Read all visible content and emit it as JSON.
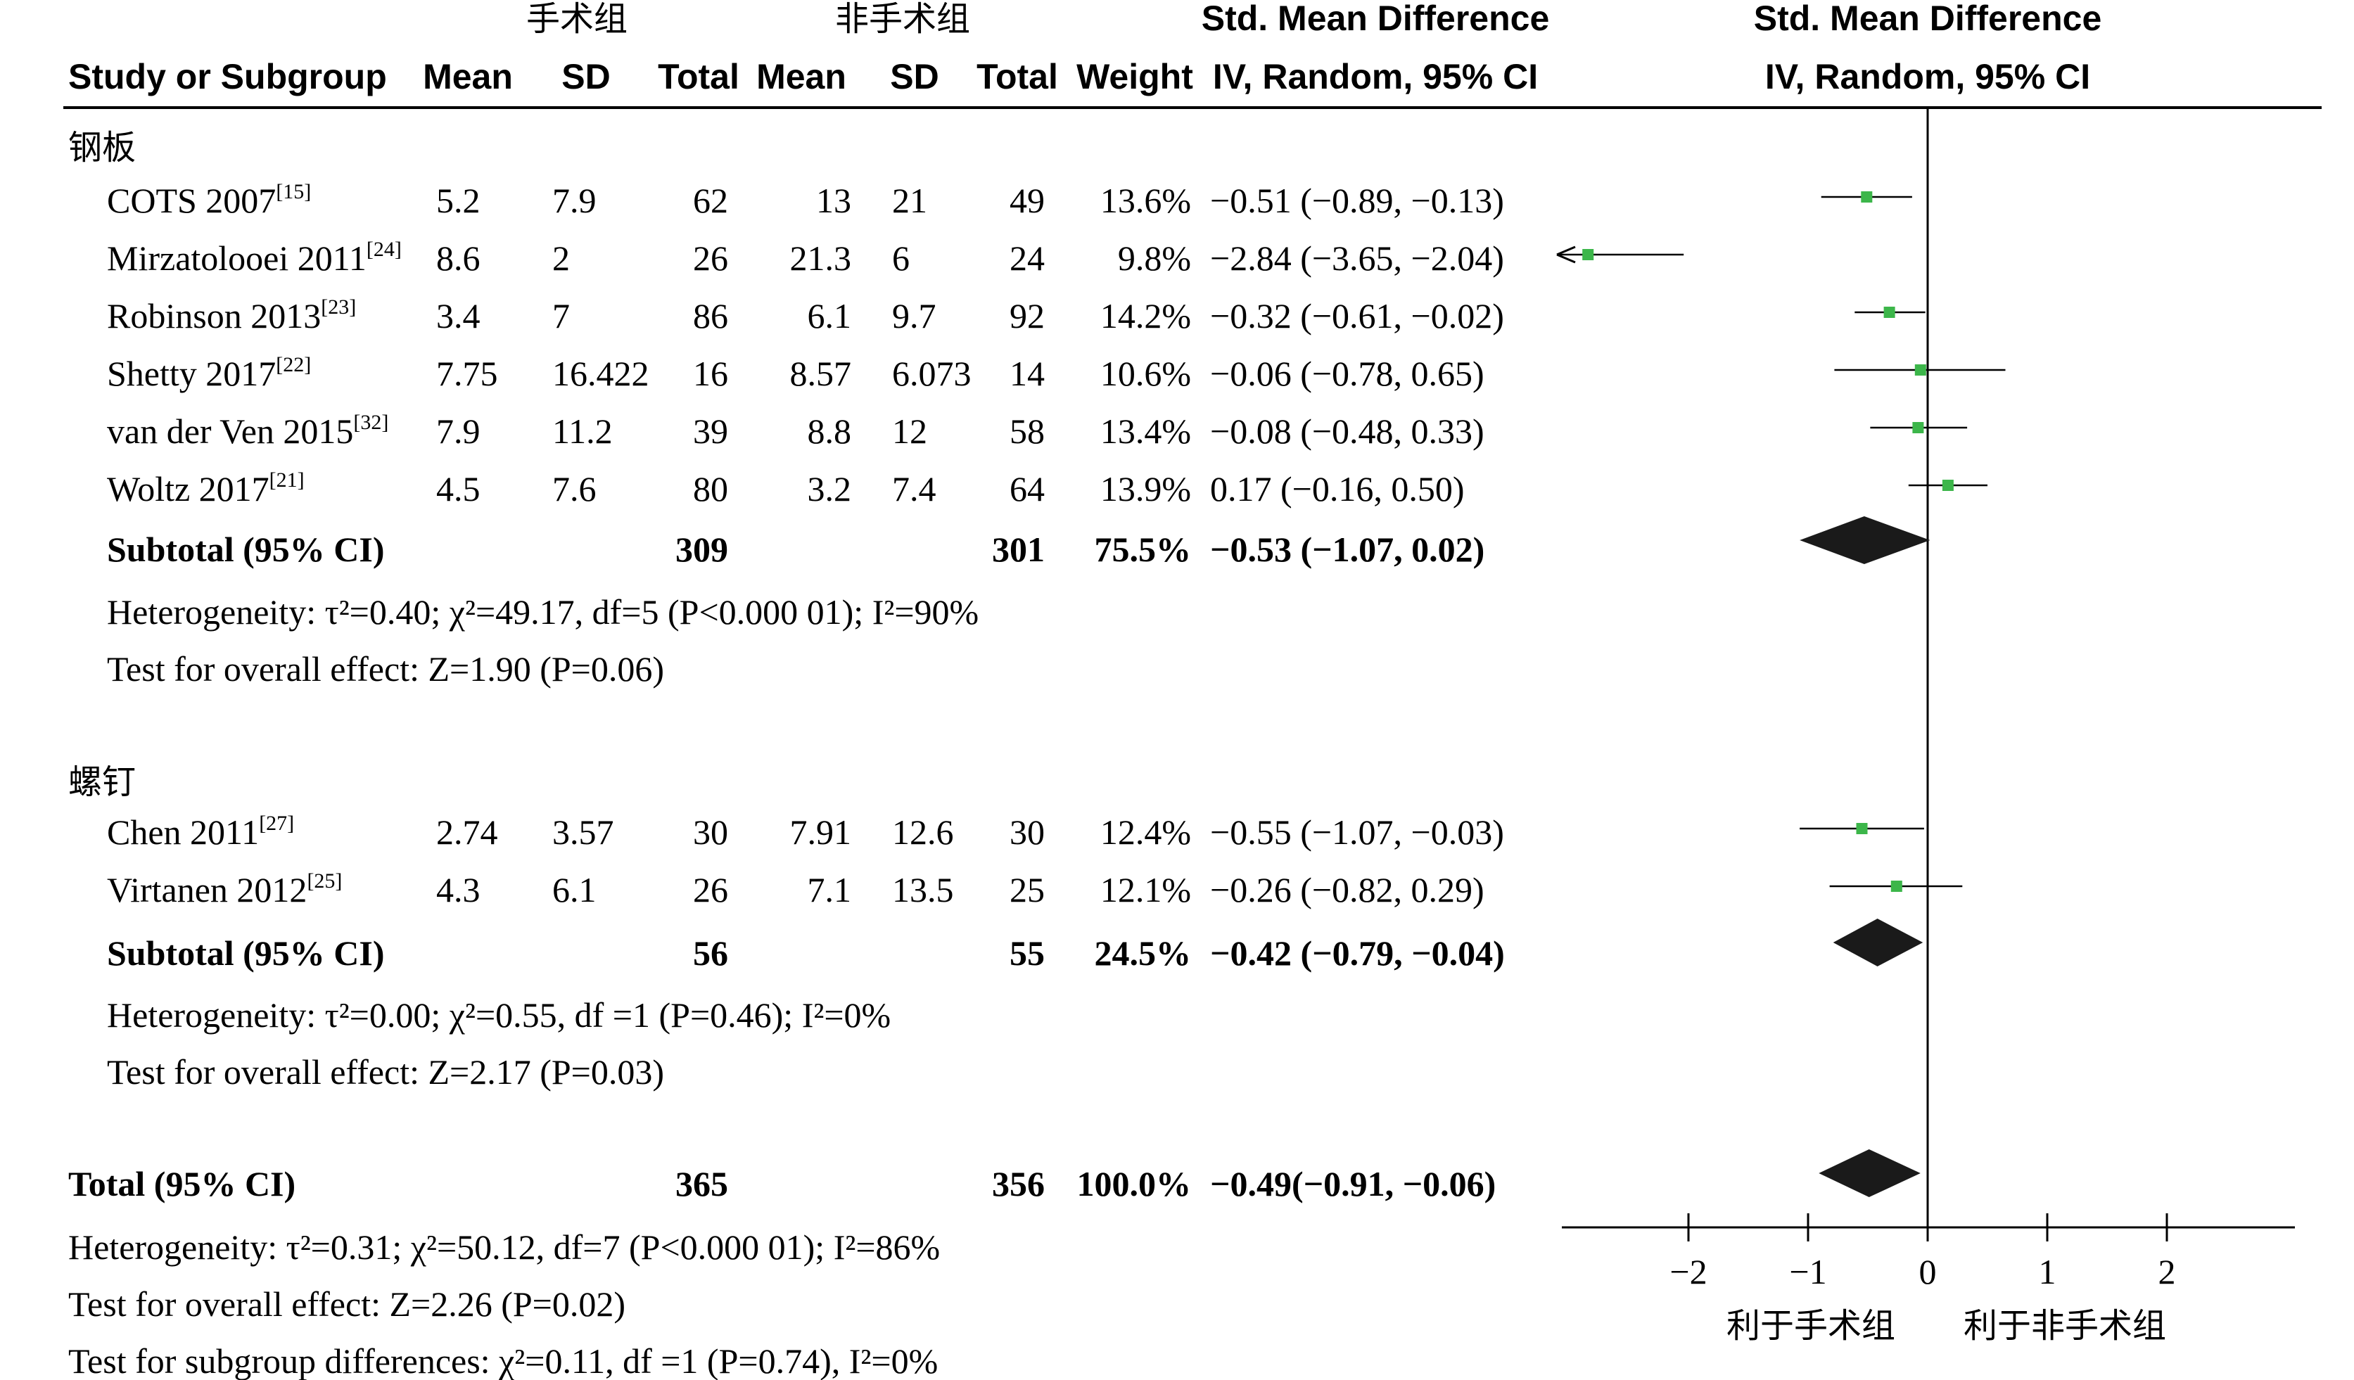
{
  "header": {
    "group1": "手术组",
    "group2": "非手术组",
    "smd_title": "Std. Mean Difference",
    "smd_method": "IV, Random, 95% CI",
    "plot_title": "Std. Mean Difference",
    "plot_method": "IV, Random, 95% CI",
    "columns": [
      "Study or Subgroup",
      "Mean",
      "SD",
      "Total",
      "Mean",
      "SD",
      "Total",
      "Weight"
    ]
  },
  "subgroups": [
    {
      "label": "钢板",
      "studies": [
        {
          "name": "COTS 2007",
          "ref": "[15]",
          "m1": "5.2",
          "sd1": "7.9",
          "n1": "62",
          "m2": "13",
          "sd2": "21",
          "n2": "49",
          "weight": "13.6%",
          "ci_text": "−0.51 (−0.89, −0.13)"
        },
        {
          "name": "Mirzatolooei 2011",
          "ref": "[24]",
          "m1": "8.6",
          "sd1": "2",
          "n1": "26",
          "m2": "21.3",
          "sd2": "6",
          "n2": "24",
          "weight": "9.8%",
          "ci_text": "−2.84 (−3.65, −2.04)"
        },
        {
          "name": "Robinson 2013",
          "ref": "[23]",
          "m1": "3.4",
          "sd1": "7",
          "n1": "86",
          "m2": "6.1",
          "sd2": "9.7",
          "n2": "92",
          "weight": "14.2%",
          "ci_text": "−0.32 (−0.61, −0.02)"
        },
        {
          "name": "Shetty 2017",
          "ref": "[22]",
          "m1": "7.75",
          "sd1": "16.422",
          "n1": "16",
          "m2": "8.57",
          "sd2": "6.073",
          "n2": "14",
          "weight": "10.6%",
          "ci_text": "−0.06 (−0.78, 0.65)"
        },
        {
          "name": "van der Ven 2015",
          "ref": "[32]",
          "m1": "7.9",
          "sd1": "11.2",
          "n1": "39",
          "m2": "8.8",
          "sd2": "12",
          "n2": "58",
          "weight": "13.4%",
          "ci_text": "−0.08 (−0.48, 0.33)"
        },
        {
          "name": "Woltz 2017",
          "ref": "[21]",
          "m1": "4.5",
          "sd1": "7.6",
          "n1": "80",
          "m2": "3.2",
          "sd2": "7.4",
          "n2": "64",
          "weight": "13.9%",
          "ci_text": "0.17 (−0.16, 0.50)"
        }
      ],
      "subtotal": {
        "label": "Subtotal (95% CI)",
        "n1": "309",
        "n2": "301",
        "weight": "75.5%",
        "ci_text": "−0.53 (−1.07, 0.02)"
      },
      "heterogeneity": "Heterogeneity: τ²=0.40; χ²=49.17, df=5 (P<0.000 01); I²=90%",
      "overall": "Test for overall effect: Z=1.90 (P=0.06)"
    },
    {
      "label": "螺钉",
      "studies": [
        {
          "name": "Chen 2011",
          "ref": "[27]",
          "m1": "2.74",
          "sd1": "3.57",
          "n1": "30",
          "m2": "7.91",
          "sd2": "12.6",
          "n2": "30",
          "weight": "12.4%",
          "ci_text": "−0.55 (−1.07, −0.03)"
        },
        {
          "name": "Virtanen 2012",
          "ref": "[25]",
          "m1": "4.3",
          "sd1": "6.1",
          "n1": "26",
          "m2": "7.1",
          "sd2": "13.5",
          "n2": "25",
          "weight": "12.1%",
          "ci_text": "−0.26 (−0.82, 0.29)"
        }
      ],
      "subtotal": {
        "label": "Subtotal (95% CI)",
        "n1": "56",
        "n2": "55",
        "weight": "24.5%",
        "ci_text": "−0.42 (−0.79, −0.04)"
      },
      "heterogeneity": "Heterogeneity: τ²=0.00; χ²=0.55, df =1 (P=0.46); I²=0%",
      "overall": "Test for overall effect: Z=2.17 (P=0.03)"
    }
  ],
  "total": {
    "label": "Total (95% CI)",
    "n1": "365",
    "n2": "356",
    "weight": "100.0%",
    "ci_text": "−0.49(−0.91, −0.06)",
    "heterogeneity": "Heterogeneity: τ²=0.31; χ²=50.12, df=7 (P<0.000 01); I²=86%",
    "overall": "Test for overall effect: Z=2.26 (P=0.02)",
    "subgroup_diff": "Test for subgroup differences: χ²=0.11, df =1 (P=0.74), I²=0%"
  },
  "axis": {
    "ticks": [
      "−2",
      "−1",
      "0",
      "1",
      "2"
    ],
    "left_label": "利于手术组",
    "right_label": "利于非手术组"
  },
  "colors": {
    "marker": "#3cb64a",
    "diamond": "#1a1a1a",
    "line": "#000000"
  },
  "chart_data": {
    "type": "forest",
    "xlim": [
      -3.1,
      3.1
    ],
    "ticks": [
      -2,
      -1,
      0,
      1,
      2
    ],
    "studies": [
      {
        "name": "COTS 2007",
        "est": -0.51,
        "lo": -0.89,
        "hi": -0.13
      },
      {
        "name": "Mirzatolooei 2011",
        "est": -2.84,
        "lo": -3.65,
        "hi": -2.04
      },
      {
        "name": "Robinson 2013",
        "est": -0.32,
        "lo": -0.61,
        "hi": -0.02
      },
      {
        "name": "Shetty 2017",
        "est": -0.06,
        "lo": -0.78,
        "hi": 0.65
      },
      {
        "name": "van der Ven 2015",
        "est": -0.08,
        "lo": -0.48,
        "hi": 0.33
      },
      {
        "name": "Woltz 2017",
        "est": 0.17,
        "lo": -0.16,
        "hi": 0.5
      },
      {
        "name": "Chen 2011",
        "est": -0.55,
        "lo": -1.07,
        "hi": -0.03
      },
      {
        "name": "Virtanen 2012",
        "est": -0.26,
        "lo": -0.82,
        "hi": 0.29
      }
    ],
    "subtotals": [
      {
        "name": "钢板",
        "est": -0.53,
        "lo": -1.07,
        "hi": 0.02
      },
      {
        "name": "螺钉",
        "est": -0.42,
        "lo": -0.79,
        "hi": -0.04
      }
    ],
    "total": {
      "est": -0.49,
      "lo": -0.91,
      "hi": -0.06
    }
  }
}
